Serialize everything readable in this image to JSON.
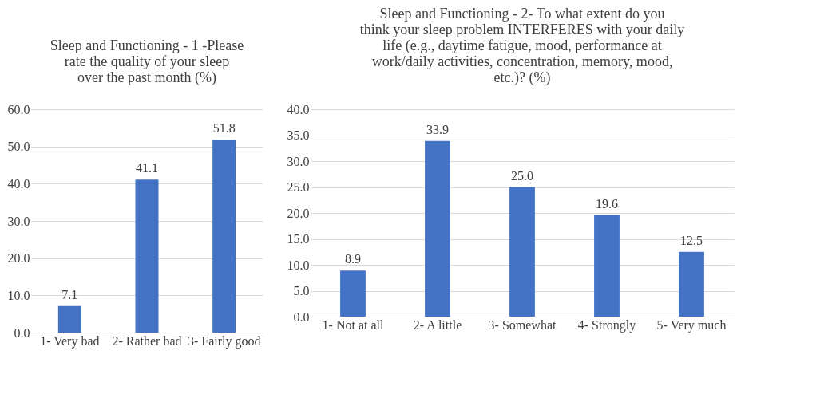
{
  "chart_data": [
    {
      "type": "bar",
      "title": "Sleep and Functioning - 1 -Please rate the quality of your sleep over the past month (%)",
      "categories": [
        "1- Very bad",
        "2- Rather bad",
        "3- Fairly good"
      ],
      "values": [
        7.1,
        41.1,
        51.8
      ],
      "value_labels": [
        "7.1",
        "41.1",
        "51.8"
      ],
      "color": "#4472c4",
      "ylim": [
        0,
        60
      ],
      "yticks": [
        {
          "value": 0,
          "label": "0.0"
        },
        {
          "value": 10,
          "label": "10.0"
        },
        {
          "value": 20,
          "label": "20.0"
        },
        {
          "value": 30,
          "label": "30.0"
        },
        {
          "value": 40,
          "label": "40.0"
        },
        {
          "value": 50,
          "label": "50.0"
        },
        {
          "value": 60,
          "label": "60.0"
        }
      ],
      "grid": "y"
    },
    {
      "type": "bar",
      "title": "Sleep and Functioning - 2- To what extent do you think your sleep problem INTERFERES with your daily life (e.g., daytime fatigue, mood, performance at work/daily activities, concentration, memory, mood, etc.)? (%)",
      "categories": [
        "1- Not at all",
        "2- A little",
        "3- Somewhat",
        "4- Strongly",
        "5- Very much"
      ],
      "values": [
        8.9,
        33.9,
        25.0,
        19.6,
        12.5
      ],
      "value_labels": [
        "8.9",
        "33.9",
        "25.0",
        "19.6",
        "12.5"
      ],
      "color": "#4472c4",
      "ylim": [
        0,
        40
      ],
      "yticks": [
        {
          "value": 0,
          "label": "0.0"
        },
        {
          "value": 5,
          "label": "5.0"
        },
        {
          "value": 10,
          "label": "10.0"
        },
        {
          "value": 15,
          "label": "15.0"
        },
        {
          "value": 20,
          "label": "20.0"
        },
        {
          "value": 25,
          "label": "25.0"
        },
        {
          "value": 30,
          "label": "30.0"
        },
        {
          "value": 35,
          "label": "35.0"
        },
        {
          "value": 40,
          "label": "40.0"
        }
      ],
      "grid": "y"
    }
  ]
}
